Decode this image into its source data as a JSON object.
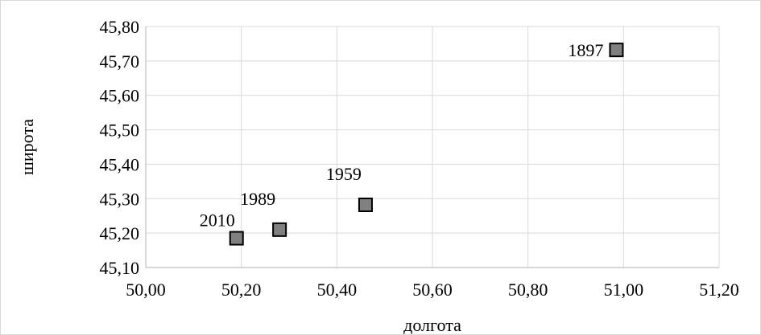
{
  "chart_data": {
    "type": "scatter",
    "xlabel": "долгота",
    "ylabel": "широта",
    "xlim": [
      50.0,
      51.2
    ],
    "ylim": [
      45.1,
      45.8
    ],
    "x_ticks": [
      "50,00",
      "50,20",
      "50,40",
      "50,60",
      "50,80",
      "51,00",
      "51,20"
    ],
    "y_ticks": [
      "45,10",
      "45,20",
      "45,30",
      "45,40",
      "45,50",
      "45,60",
      "45,70",
      "45,80"
    ],
    "grid": true,
    "marker": "square",
    "marker_color": "#808080",
    "points": [
      {
        "x": 50.19,
        "y": 45.185,
        "label": "2010"
      },
      {
        "x": 50.28,
        "y": 45.21,
        "label": "1989"
      },
      {
        "x": 50.46,
        "y": 45.282,
        "label": "1959"
      },
      {
        "x": 50.985,
        "y": 45.732,
        "label": "1897"
      }
    ]
  }
}
